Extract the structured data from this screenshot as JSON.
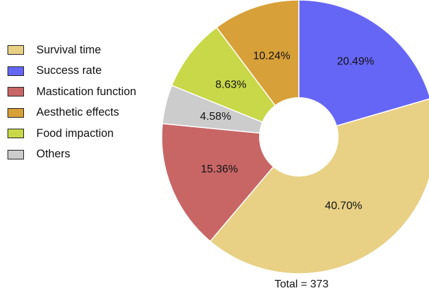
{
  "chart_data": {
    "type": "pie",
    "style": "donut",
    "categories": [
      "Survival time",
      "Success rate",
      "Mastication function",
      "Aesthetic effects",
      "Food impaction",
      "Others"
    ],
    "values": [
      40.7,
      20.49,
      15.36,
      10.24,
      8.63,
      4.58
    ],
    "value_labels": [
      "40.70%",
      "20.49%",
      "15.36%",
      "10.24%",
      "8.63%",
      "4.58%"
    ],
    "colors": [
      "#E8D085",
      "#6666F6",
      "#C86666",
      "#D8A038",
      "#C8D848",
      "#CCCCCC"
    ],
    "legend_placement": "left",
    "annotation": "Total = 373"
  }
}
